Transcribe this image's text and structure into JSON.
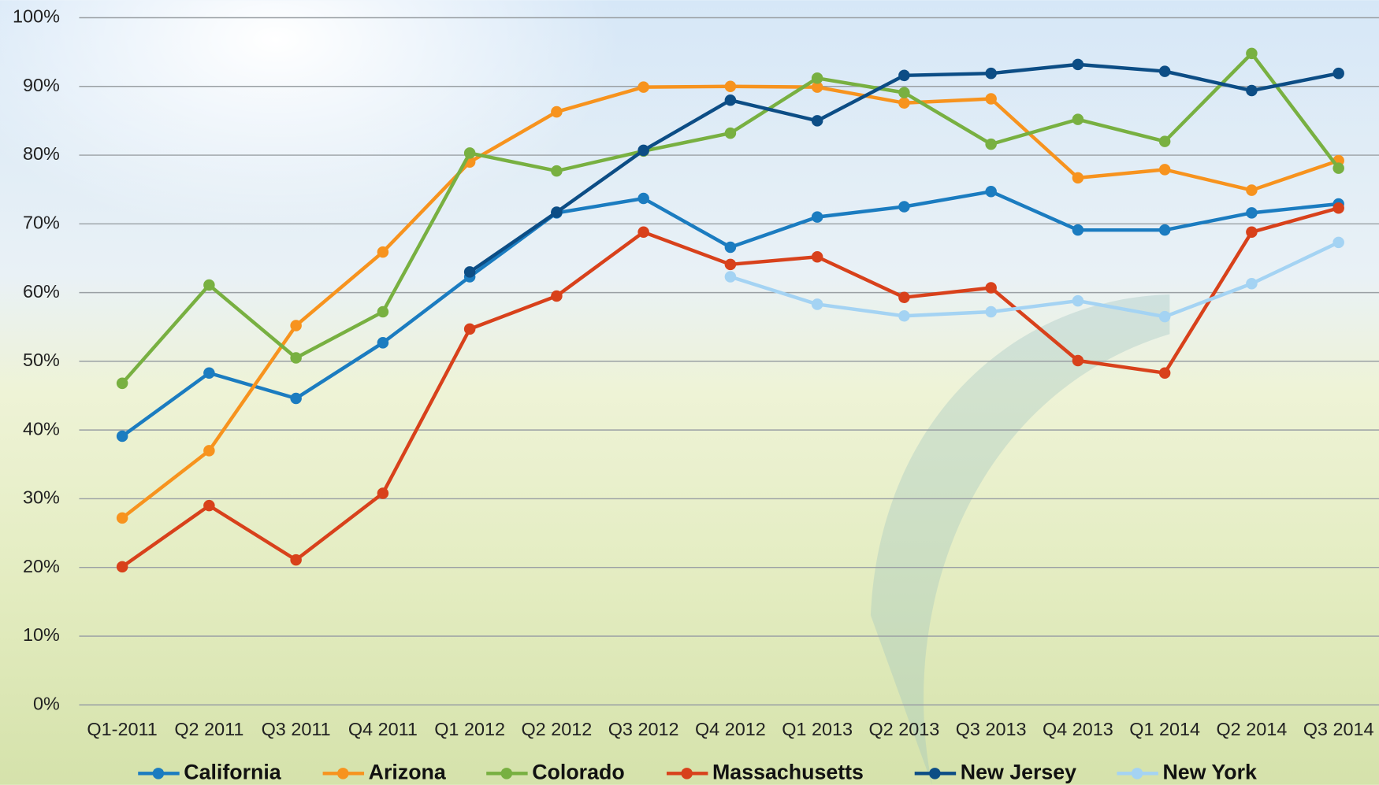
{
  "chart_data": {
    "type": "line",
    "categories": [
      "Q1-2011",
      "Q2 2011",
      "Q3 2011",
      "Q4 2011",
      "Q1 2012",
      "Q2 2012",
      "Q3 2012",
      "Q4 2012",
      "Q1 2013",
      "Q2 2013",
      "Q3 2013",
      "Q4 2013",
      "Q1 2014",
      "Q2 2014",
      "Q3 2014"
    ],
    "series": [
      {
        "name": "California",
        "color": "#1b7cc0",
        "values": [
          39.1,
          48.3,
          44.6,
          52.7,
          62.3,
          71.6,
          73.7,
          66.6,
          71.0,
          72.5,
          74.7,
          69.1,
          69.1,
          71.6,
          72.9
        ]
      },
      {
        "name": "Arizona",
        "color": "#f7931e",
        "values": [
          27.2,
          37.0,
          55.2,
          65.9,
          79.0,
          86.3,
          89.9,
          90.0,
          89.9,
          87.6,
          88.2,
          76.7,
          77.9,
          74.9,
          79.2
        ]
      },
      {
        "name": "Colorado",
        "color": "#78b041",
        "values": [
          46.8,
          61.1,
          50.5,
          57.2,
          80.3,
          77.7,
          80.6,
          83.2,
          91.2,
          89.1,
          81.6,
          85.2,
          82.0,
          94.8,
          78.1
        ]
      },
      {
        "name": "Massachusetts",
        "color": "#d8411b",
        "values": [
          20.1,
          29.0,
          21.1,
          30.8,
          54.7,
          59.5,
          68.8,
          64.1,
          65.2,
          59.3,
          60.7,
          50.1,
          48.3,
          68.8,
          72.3
        ]
      },
      {
        "name": "New Jersey",
        "color": "#0c4d85",
        "values": [
          null,
          null,
          null,
          null,
          63.0,
          71.7,
          80.7,
          88.0,
          85.0,
          91.6,
          91.9,
          93.2,
          92.2,
          89.4,
          91.9
        ]
      },
      {
        "name": "New York",
        "color": "#a4d3f3",
        "values": [
          null,
          null,
          null,
          null,
          null,
          null,
          null,
          62.3,
          58.3,
          56.6,
          57.2,
          58.8,
          56.5,
          61.3,
          67.3
        ]
      }
    ],
    "ylim": [
      0,
      100
    ],
    "yticks": [
      {
        "value": 0,
        "label": "0%"
      },
      {
        "value": 10,
        "label": "10%"
      },
      {
        "value": 20,
        "label": "20%"
      },
      {
        "value": 30,
        "label": "30%"
      },
      {
        "value": 40,
        "label": "40%"
      },
      {
        "value": 50,
        "label": "50%"
      },
      {
        "value": 60,
        "label": "60%"
      },
      {
        "value": 70,
        "label": "70%"
      },
      {
        "value": 80,
        "label": "80%"
      },
      {
        "value": 90,
        "label": "90%"
      },
      {
        "value": 100,
        "label": "100%"
      }
    ],
    "grid": true,
    "legend": "bottom"
  }
}
